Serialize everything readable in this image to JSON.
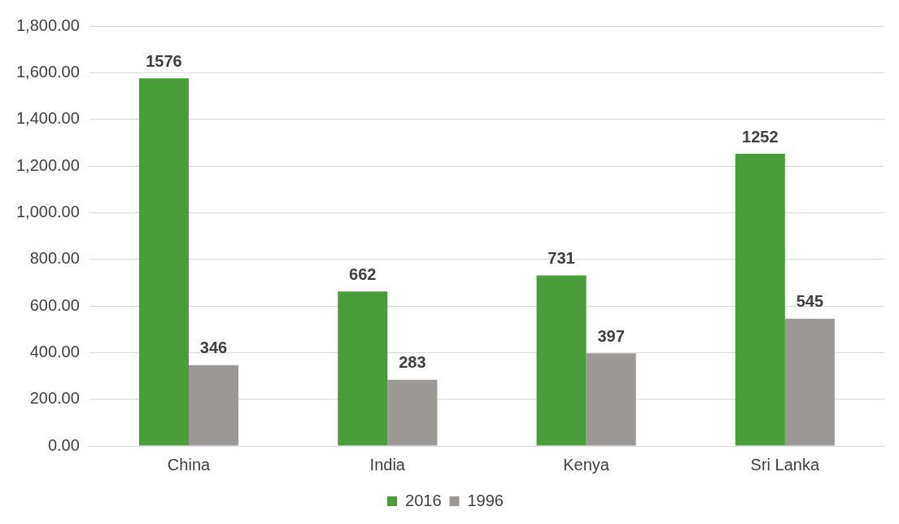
{
  "chart_data": {
    "type": "bar",
    "categories": [
      "China",
      "India",
      "Kenya",
      "Sri Lanka"
    ],
    "series": [
      {
        "name": "2016",
        "color": "#4a9e3a",
        "values": [
          1576,
          662,
          731,
          1252
        ]
      },
      {
        "name": "1996",
        "color": "#9c9896",
        "values": [
          346,
          283,
          397,
          545
        ]
      }
    ],
    "ylim": [
      0,
      1800
    ],
    "yticks": [
      {
        "value": 0,
        "label": "0.00"
      },
      {
        "value": 200,
        "label": "200.00"
      },
      {
        "value": 400,
        "label": "400.00"
      },
      {
        "value": 600,
        "label": "600.00"
      },
      {
        "value": 800,
        "label": "800.00"
      },
      {
        "value": 1000,
        "label": "1,000.00"
      },
      {
        "value": 1200,
        "label": "1,200.00"
      },
      {
        "value": 1400,
        "label": "1,400.00"
      },
      {
        "value": 1600,
        "label": "1,600.00"
      },
      {
        "value": 1800,
        "label": "1,800.00"
      }
    ],
    "grid": "y",
    "legend": "bottom",
    "data_labels": true
  }
}
